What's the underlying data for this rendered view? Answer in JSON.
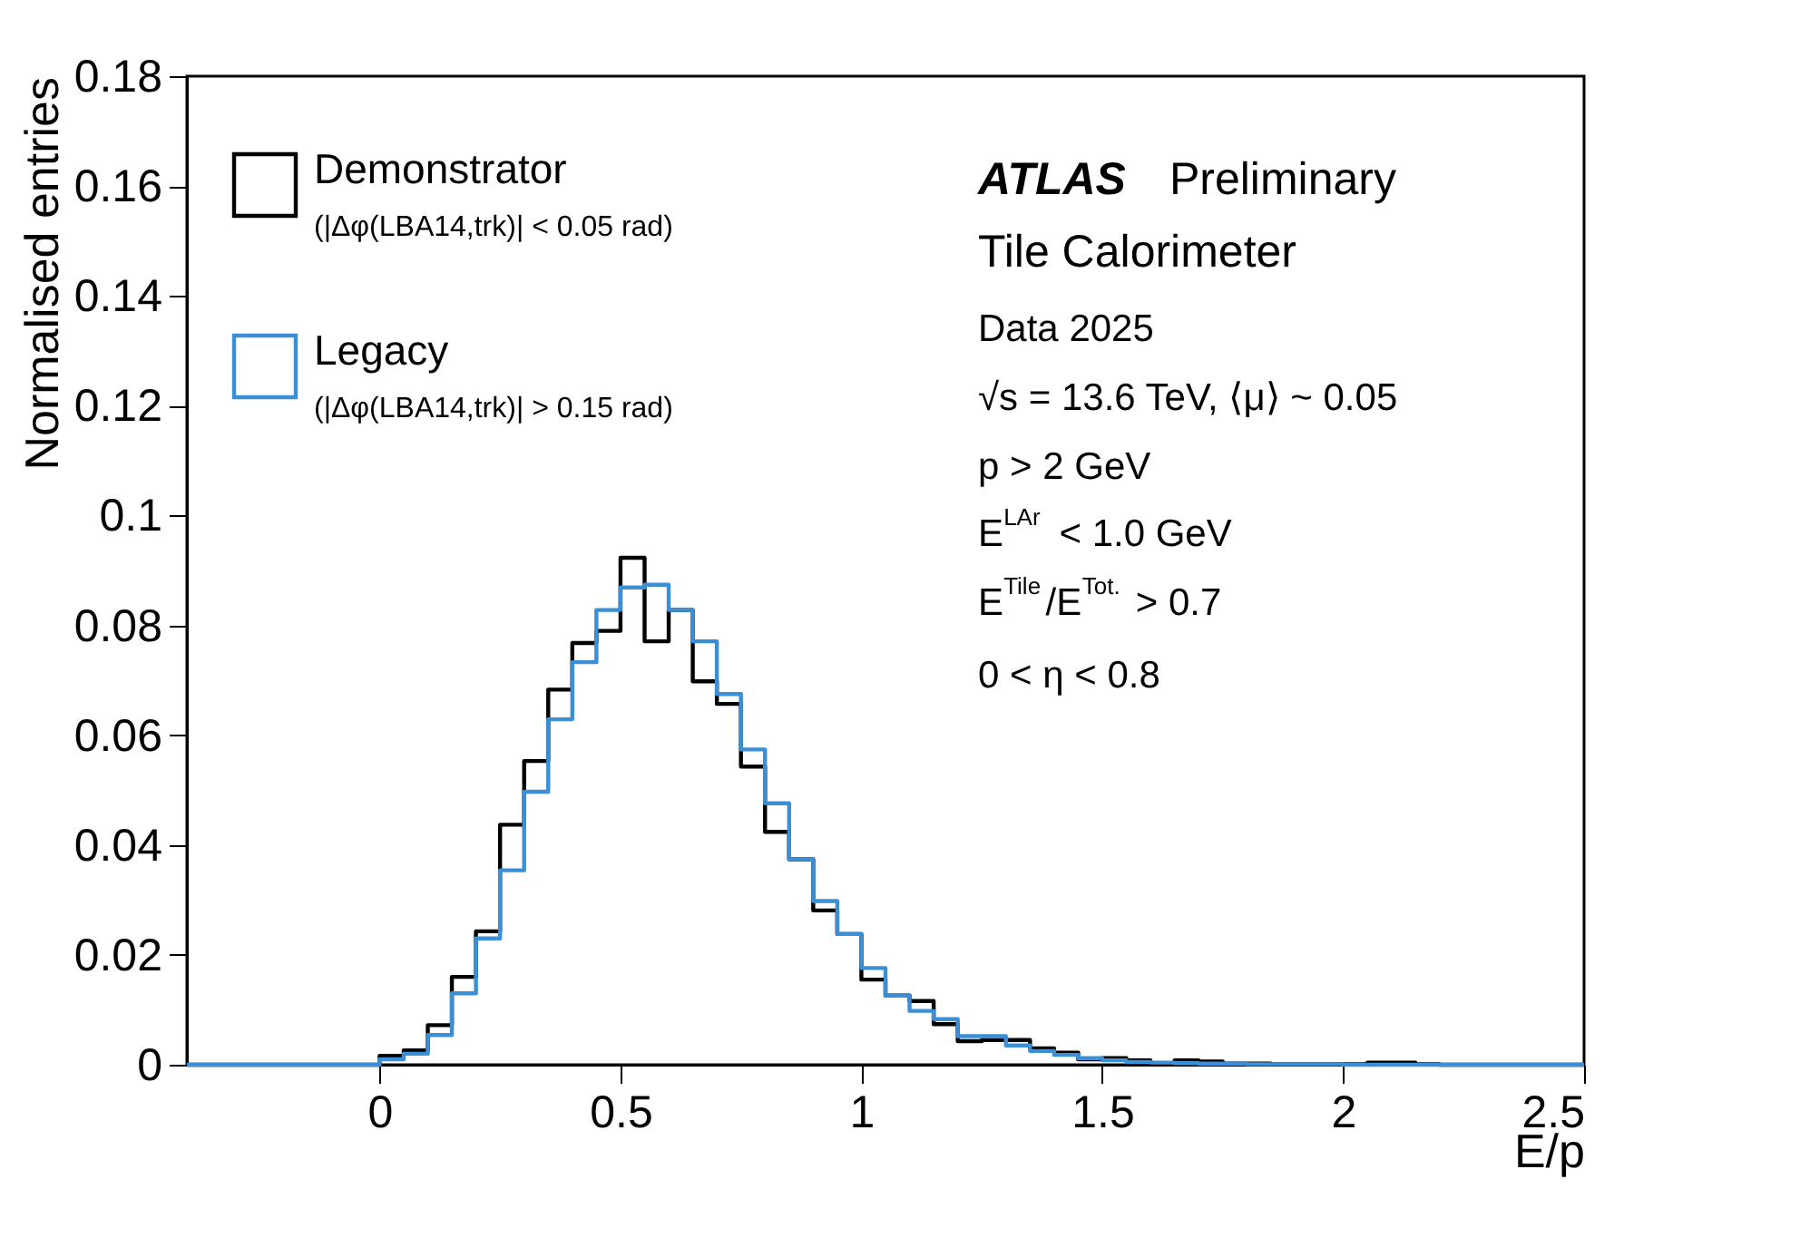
{
  "chart_data": {
    "type": "histogram",
    "xlabel": "E/p",
    "ylabel": "Normalised entries",
    "bins": [
      -0.4,
      -0.35,
      -0.3,
      -0.25,
      -0.2,
      -0.15,
      -0.1,
      -0.05,
      0,
      0.05,
      0.1,
      0.15,
      0.2,
      0.25,
      0.3,
      0.35,
      0.4,
      0.45,
      0.5,
      0.55,
      0.6,
      0.65,
      0.7,
      0.75,
      0.8,
      0.85,
      0.9,
      0.95,
      1.0,
      1.05,
      1.1,
      1.15,
      1.2,
      1.25,
      1.3,
      1.35,
      1.4,
      1.45,
      1.5,
      1.55,
      1.6,
      1.65,
      1.7,
      1.75,
      1.8,
      1.85,
      1.9,
      1.95,
      2.0,
      2.05,
      2.1,
      2.15,
      2.2,
      2.25,
      2.3,
      2.35,
      2.4,
      2.45,
      2.5
    ],
    "series": [
      {
        "name": "Demonstrator",
        "color": "#000000",
        "values": [
          0,
          0,
          0,
          0,
          0,
          0,
          0,
          0,
          0.0016,
          0.0026,
          0.0072,
          0.016,
          0.0243,
          0.0437,
          0.0553,
          0.0683,
          0.0768,
          0.079,
          0.0923,
          0.0771,
          0.0828,
          0.0698,
          0.0657,
          0.0543,
          0.0424,
          0.0374,
          0.0281,
          0.0238,
          0.0155,
          0.0126,
          0.0116,
          0.0074,
          0.0043,
          0.0045,
          0.0045,
          0.003,
          0.0022,
          0.001,
          0.0012,
          0.0008,
          0.0003,
          0.0008,
          0.0006,
          0.0002,
          0.0002,
          0.0001,
          0.0001,
          0.0001,
          0.0001,
          0.0004,
          0.0004,
          0.0001,
          0,
          0,
          0,
          0,
          0,
          0
        ]
      },
      {
        "name": "Legacy",
        "color": "#3a8fd6",
        "values": [
          0,
          0,
          0,
          0,
          0,
          0,
          0,
          0,
          0.001,
          0.002,
          0.0054,
          0.013,
          0.023,
          0.0354,
          0.0497,
          0.0629,
          0.0733,
          0.0828,
          0.0869,
          0.0874,
          0.0828,
          0.0771,
          0.0675,
          0.0574,
          0.0476,
          0.0374,
          0.0298,
          0.0238,
          0.0176,
          0.0126,
          0.0098,
          0.0083,
          0.0052,
          0.0052,
          0.0035,
          0.0025,
          0.0018,
          0.0012,
          0.0008,
          0.0005,
          0.0004,
          0.0003,
          0.0002,
          0.0002,
          0.0001,
          0.0001,
          0.0001,
          0.0001,
          0,
          0,
          0,
          0,
          0,
          0,
          0,
          0,
          0,
          0
        ]
      }
    ],
    "xlim": [
      -0.4,
      2.5
    ],
    "xticks": [
      0,
      0.5,
      1,
      1.5,
      2,
      2.5
    ],
    "ylim": [
      0,
      0.18
    ],
    "yticks": [
      0,
      0.02,
      0.04,
      0.06,
      0.08,
      0.1,
      0.12,
      0.14,
      0.16,
      0.18
    ],
    "grid": false,
    "legend": "top left",
    "annotations": [
      "(|Δφ(LBA14,trk)| < 0.05 rad)",
      "(|Δφ(LBA14,trk)| > 0.15 rad)",
      "ATLAS Preliminary",
      "Tile Calorimeter",
      "Data 2025",
      "√s = 13.6 TeV, ⟨μ⟩ ~ 0.05",
      "p > 2 GeV",
      "E$^{LAr}$ < 1.0 GeV",
      "E$^{Tile}$/E$^{Tot.}$ > 0.7",
      "0 < η < 0.8"
    ]
  }
}
